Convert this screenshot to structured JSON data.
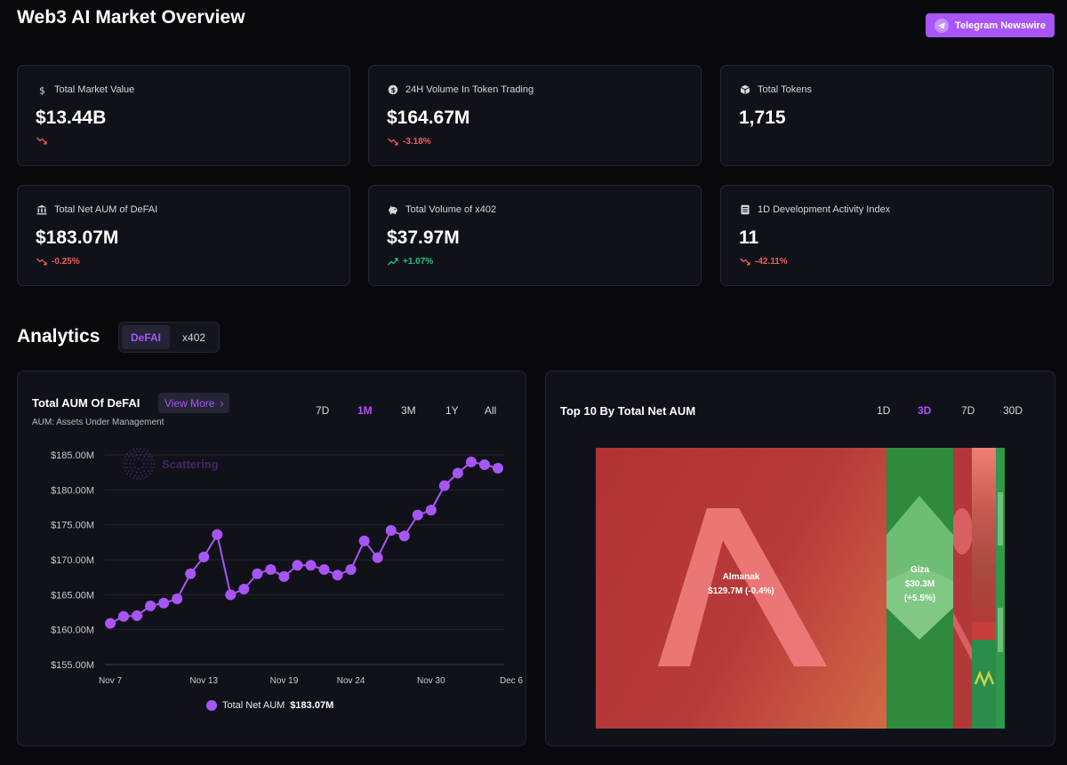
{
  "header": {
    "title": "Web3 AI Market Overview",
    "telegram_label": "Telegram Newswire"
  },
  "stats": [
    {
      "label": "Total Market Value",
      "value": "$13.44B",
      "change": "",
      "direction": "down",
      "icon": "dollar-icon"
    },
    {
      "label": "24H Volume In Token Trading",
      "value": "$164.67M",
      "change": "-3.18%",
      "direction": "down",
      "icon": "coin-icon"
    },
    {
      "label": "Total Tokens",
      "value": "1,715",
      "change": "",
      "direction": "none",
      "icon": "cube-icon"
    },
    {
      "label": "Total Net AUM of DeFAI",
      "value": "$183.07M",
      "change": "-0.25%",
      "direction": "down",
      "icon": "bank-icon"
    },
    {
      "label": "Total Volume of x402",
      "value": "$37.97M",
      "change": "+1.07%",
      "direction": "up",
      "icon": "piggy-bank-icon"
    },
    {
      "label": "1D Development Activity Index",
      "value": "11",
      "change": "-42.11%",
      "direction": "down",
      "icon": "document-icon"
    }
  ],
  "analytics": {
    "title": "Analytics",
    "tabs": [
      "DeFAI",
      "x402"
    ],
    "active_tab": "DeFAI"
  },
  "aum_panel": {
    "title": "Total AUM Of DeFAI",
    "view_more": "View More",
    "subtitle": "AUM: Assets Under Management",
    "timeframes": [
      "7D",
      "1M",
      "3M",
      "1Y",
      "All"
    ],
    "active_timeframe": "1M",
    "watermark": "Scattering",
    "legend_label": "Total Net AUM",
    "legend_value": "$183.07M"
  },
  "top10_panel": {
    "title": "Top 10 By Total Net AUM",
    "timeframes": [
      "1D",
      "3D",
      "7D",
      "30D"
    ],
    "active_timeframe": "3D",
    "items": [
      {
        "name": "Almanak",
        "value": "$129.7M",
        "change": "(-0.4%)"
      },
      {
        "name": "Giza",
        "value": "$30.3M",
        "change": "(+5.5%)"
      }
    ]
  },
  "colors": {
    "accent": "#a855f7",
    "up": "#22c58b",
    "down": "#ef5b5b",
    "treemap_red": "#b3383a",
    "treemap_green": "#2f8a3e"
  },
  "chart_data": {
    "type": "line",
    "title": "Total AUM Of DeFAI",
    "xlabel": "",
    "ylabel": "",
    "ylim": [
      155,
      186
    ],
    "y_ticks": [
      "$155.00M",
      "$160.00M",
      "$165.00M",
      "$170.00M",
      "$175.00M",
      "$180.00M",
      "$185.00M"
    ],
    "x_tick_labels": [
      "Nov 7",
      "Nov 13",
      "Nov 19",
      "Nov 24",
      "Nov 30",
      "Dec 6"
    ],
    "x_tick_index": [
      0,
      7,
      13,
      18,
      24,
      30
    ],
    "series": [
      {
        "name": "Total Net AUM",
        "values": [
          160.9,
          161.9,
          162.0,
          163.4,
          163.8,
          164.4,
          168.0,
          170.4,
          173.6,
          165.0,
          165.8,
          168.0,
          168.6,
          167.6,
          169.2,
          169.2,
          168.6,
          167.8,
          168.6,
          172.7,
          170.3,
          174.2,
          173.4,
          176.4,
          177.1,
          180.6,
          182.4,
          184.0,
          183.6,
          183.1
        ]
      }
    ]
  }
}
